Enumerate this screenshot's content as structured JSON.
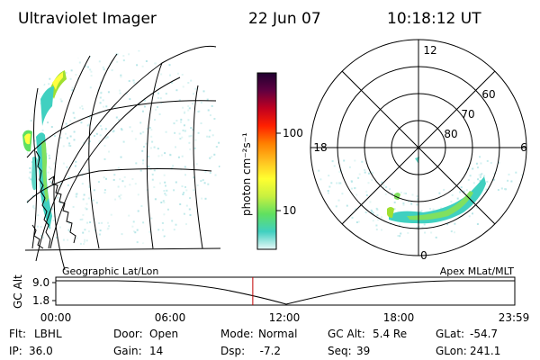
{
  "header": {
    "instrument": "Ultraviolet Imager",
    "date": "22 Jun 07",
    "time": "10:18:12 UT"
  },
  "left_panel": {
    "caption": "Geographic Lat/Lon"
  },
  "right_panel": {
    "caption": "Apex MLat/MLT",
    "mlt_labels": {
      "top": "12",
      "left": "18",
      "right": "6",
      "bottom": "0"
    },
    "mlat_labels": [
      "60",
      "70",
      "80"
    ]
  },
  "colorbar": {
    "unit_label": "photon cm⁻²s⁻¹",
    "ticks": [
      "100",
      "10"
    ],
    "stops": [
      "#e8f8f8",
      "#40d0c0",
      "#60e060",
      "#c8f040",
      "#ffff30",
      "#ffc020",
      "#ff8000",
      "#ff2000",
      "#c00020",
      "#600040",
      "#200030"
    ]
  },
  "altitude_strip": {
    "axis_label": "GC Alt",
    "y_ticks": [
      "9.0",
      "1.8"
    ],
    "x_ticks": [
      "00:00",
      "06:00",
      "12:00",
      "18:00",
      "23:59"
    ],
    "marker_time": "10:18",
    "marker_color": "#c00000"
  },
  "status": {
    "rows": [
      [
        {
          "key": "Flt:",
          "value": "LBHL"
        },
        {
          "key": "Door:",
          "value": "Open"
        },
        {
          "key": "Mode:",
          "value": "Normal"
        },
        {
          "key": "GC Alt:",
          "value": "5.4 Re"
        },
        {
          "key": "GLat:",
          "value": "-54.7"
        }
      ],
      [
        {
          "key": "IP:",
          "value": "36.0"
        },
        {
          "key": "Gain:",
          "value": "14"
        },
        {
          "key": "Dsp:",
          "value": "  -7.2"
        },
        {
          "key": "Seq:",
          "value": "39"
        },
        {
          "key": "GLon:",
          "value": "241.1"
        }
      ]
    ]
  }
}
